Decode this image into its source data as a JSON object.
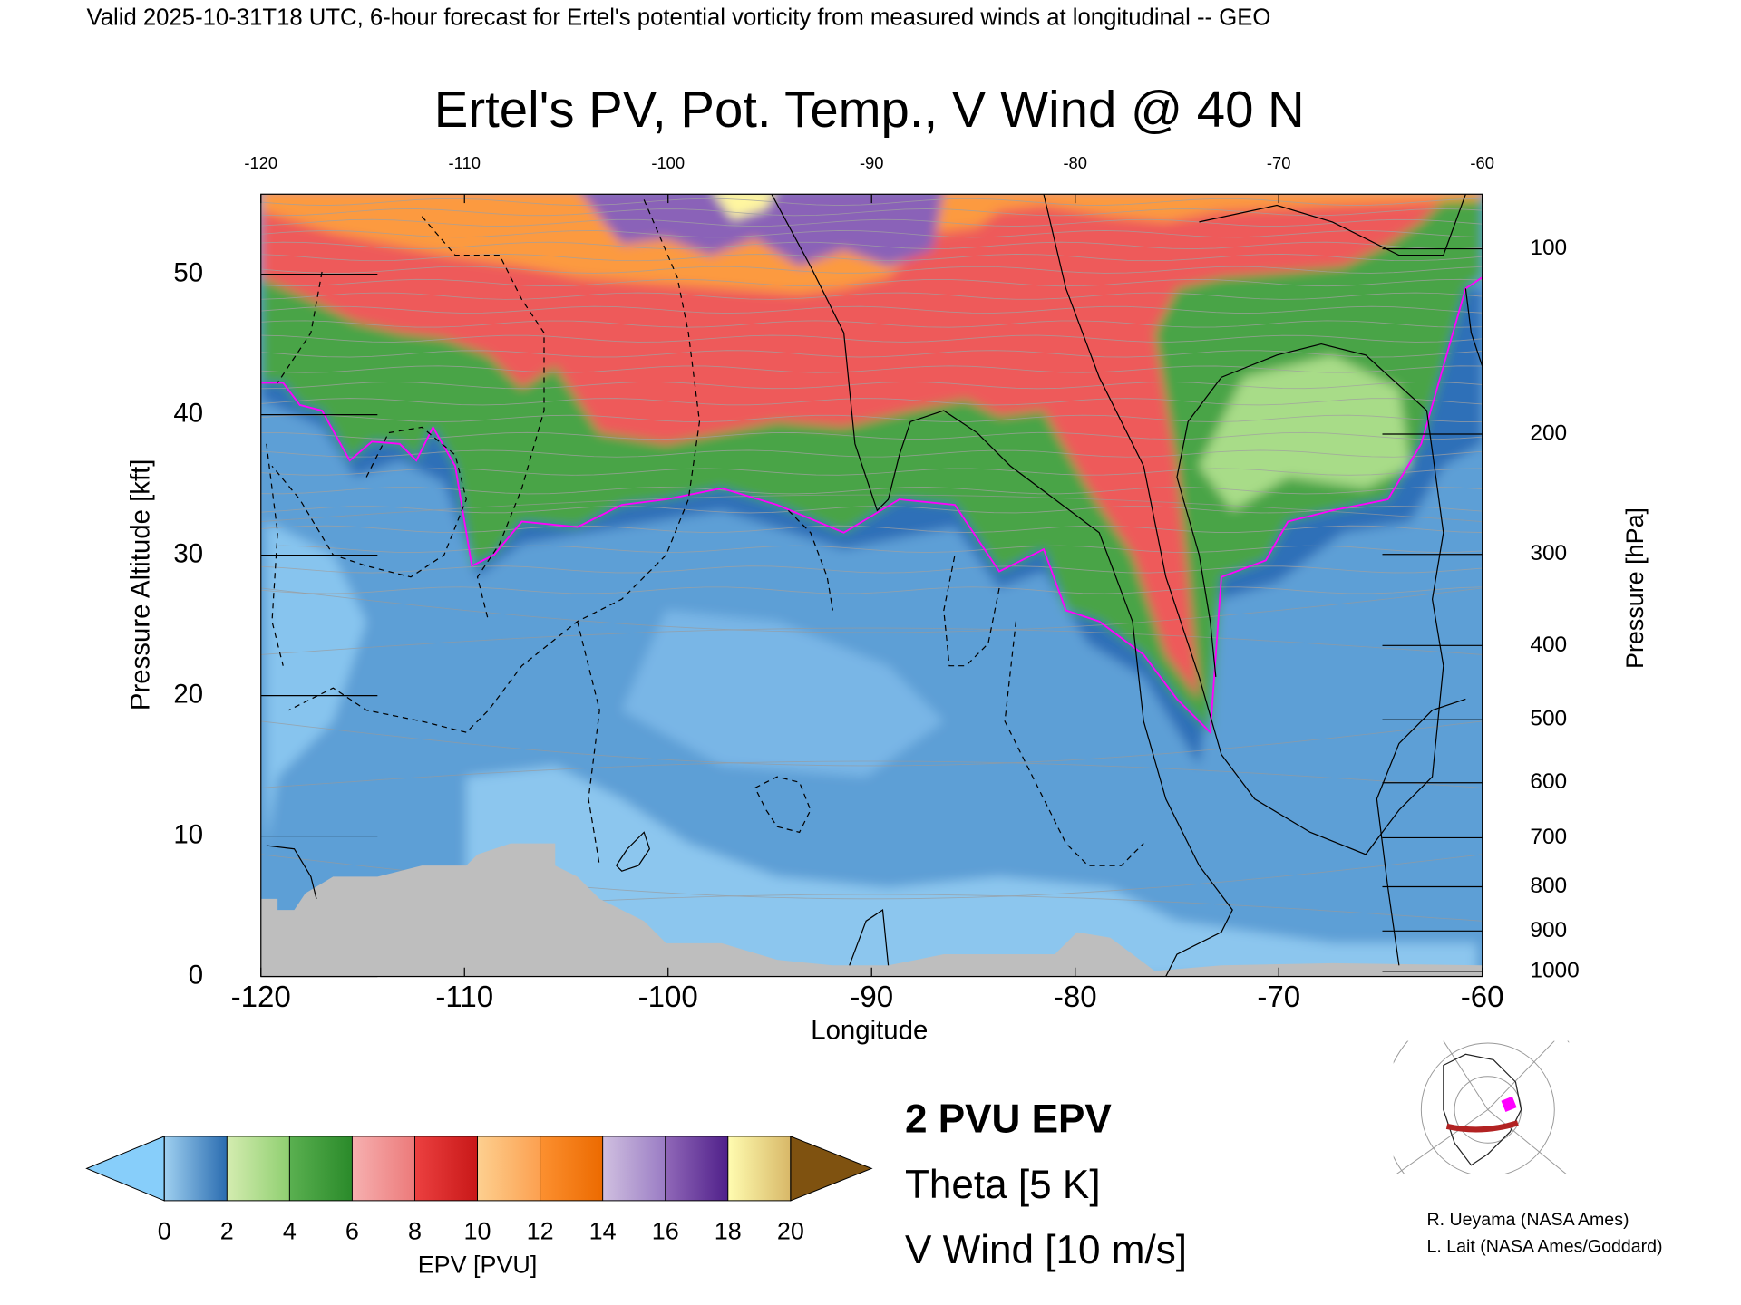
{
  "chart_data": {
    "type": "contour",
    "subtitle": "Valid 2025-10-31T18 UTC, 6-hour forecast for Ertel's potential vorticity from measured winds at longitudinal -- GEO",
    "title": "Ertel's PV, Pot. Temp., V Wind @ 40 N",
    "xlabel": "Longitude",
    "ylabel": "Pressure Altitude [kft]",
    "y2label": "Pressure [hPa]",
    "xlim": [
      -120,
      -60
    ],
    "xticks": [
      -120,
      -110,
      -100,
      -90,
      -80,
      -70,
      -60
    ],
    "ylim": [
      0,
      55.7
    ],
    "yticks": [
      0,
      10,
      20,
      30,
      40,
      50
    ],
    "y2scale": "pressure-altitude",
    "y2lim": [
      1013.25,
      80
    ],
    "y2ticks": [
      100,
      200,
      300,
      400,
      500,
      600,
      700,
      800,
      900,
      1000
    ],
    "colorbar": {
      "label": "EPV [PVU]",
      "ticks": [
        0,
        2,
        4,
        6,
        8,
        10,
        12,
        14,
        16,
        18,
        20
      ],
      "colors": [
        [
          "#9fd0f0",
          "#2a6cb0"
        ],
        [
          "#d4ecb0",
          "#8fcf70"
        ],
        [
          "#5ab050",
          "#2a8a2a"
        ],
        [
          "#f6b0b0",
          "#ec7a7a"
        ],
        [
          "#ec4040",
          "#c81818"
        ],
        [
          "#fdd090",
          "#fca050"
        ],
        [
          "#fc9030",
          "#ec6a00"
        ],
        [
          "#d0c0e0",
          "#9a7cc4"
        ],
        [
          "#9068b8",
          "#50208a"
        ],
        [
          "#fffcb0",
          "#d8b868"
        ]
      ],
      "under": "#87cefa",
      "over": "#7f5210"
    },
    "legend": [
      {
        "name": "2 PVU EPV",
        "color": "#ff00ff"
      },
      {
        "name": "Theta [5 K]",
        "color": "#b4b4b4"
      },
      {
        "name": "V Wind [10 m/s]",
        "color": "#000000"
      }
    ],
    "credits": [
      "R. Ueyama (NASA Ames)",
      "L. Lait (NASA Ames/Goddard)"
    ]
  }
}
